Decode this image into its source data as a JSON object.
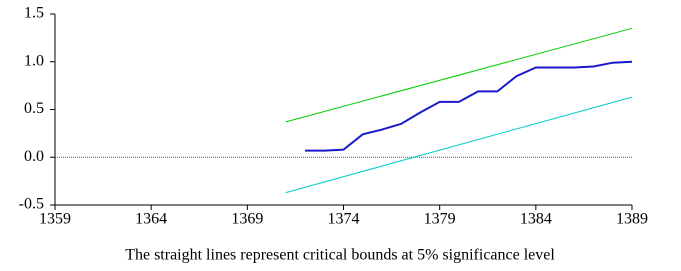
{
  "chart_data": {
    "type": "line",
    "caption": "The straight lines represent critical bounds at 5% significance level",
    "xlim": [
      1359,
      1389
    ],
    "xticks": [
      1359,
      1364,
      1369,
      1374,
      1379,
      1384,
      1389
    ],
    "ylim": [
      -0.5,
      1.5
    ],
    "yticks": [
      1.5,
      {
        "value": 1,
        "label": "1.0"
      },
      0.5,
      {
        "value": 0,
        "label": "0.0"
      },
      -0.5
    ],
    "hline": 0,
    "series": [
      {
        "color": "#00cc00",
        "x": [
          1371,
          1389
        ],
        "values": [
          0.37,
          1.35
        ]
      },
      {
        "color": "#00cccc",
        "x": [
          1371,
          1389
        ],
        "values": [
          -0.37,
          0.63
        ]
      },
      {
        "color": "#1a1acc",
        "x": [
          1372,
          1373,
          1374,
          1375,
          1376,
          1377,
          1378,
          1379,
          1380,
          1381,
          1382,
          1383,
          1384,
          1385,
          1386,
          1387,
          1388,
          1389
        ],
        "values": [
          0.07,
          0.07,
          0.08,
          0.24,
          0.29,
          0.35,
          0.47,
          0.58,
          0.58,
          0.69,
          0.69,
          0.85,
          0.94,
          0.94,
          0.94,
          0.95,
          0.99,
          1.0
        ]
      }
    ]
  }
}
